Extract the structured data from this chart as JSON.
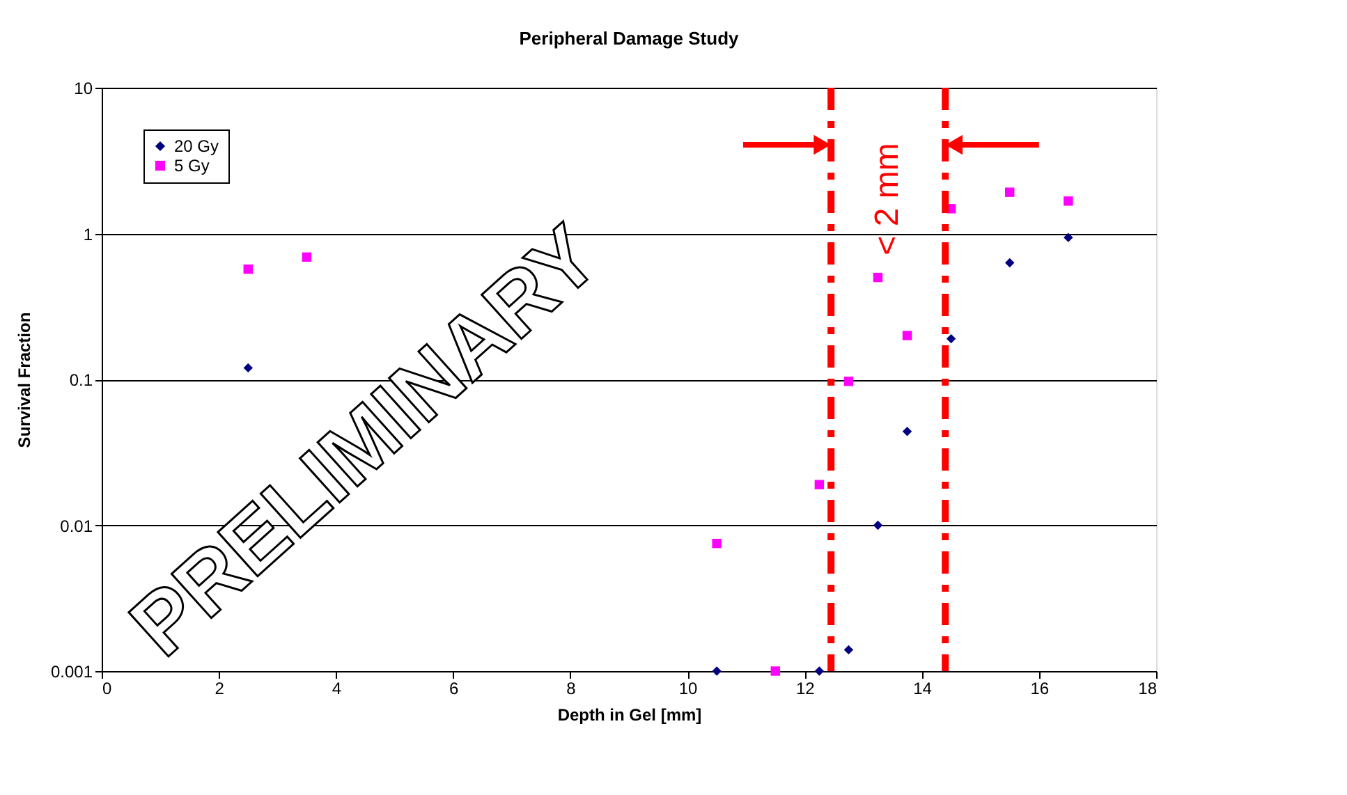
{
  "chart_data": {
    "type": "scatter",
    "title": "Peripheral Damage Study",
    "xlabel": "Depth in Gel [mm]",
    "ylabel": "Survival Fraction",
    "xlim": [
      0,
      18
    ],
    "xticks": [
      0,
      2,
      4,
      6,
      8,
      10,
      12,
      14,
      16,
      18
    ],
    "ylim": [
      0.001,
      10
    ],
    "yticks": [
      0.001,
      0.01,
      0.1,
      1,
      10
    ],
    "log": "y",
    "grid": "y",
    "legend": "top left",
    "series": [
      {
        "name": "20 Gy",
        "color": "#000080",
        "marker": "diamond",
        "x": [
          2.5,
          10.5,
          12.25,
          12.75,
          13.25,
          13.75,
          14.5,
          15.5,
          16.5
        ],
        "values": [
          0.12,
          0.001,
          0.001,
          0.0014,
          0.01,
          0.044,
          0.19,
          0.63,
          0.94
        ]
      },
      {
        "name": "5 Gy",
        "color": "#ff00ff",
        "marker": "square",
        "x": [
          2.5,
          3.5,
          10.5,
          11.5,
          12.25,
          12.75,
          13.25,
          13.75,
          14.5,
          15.5,
          16.5
        ],
        "values": [
          0.57,
          0.69,
          0.0075,
          0.001,
          0.019,
          0.097,
          0.5,
          0.2,
          1.48,
          1.92,
          1.67
        ]
      }
    ],
    "ref_lines": [
      {
        "axis": "x",
        "value": 12.45,
        "color": "#ff0000",
        "line_style": "dashed"
      },
      {
        "axis": "x",
        "value": 14.4,
        "color": "#ff0000",
        "line_style": "dashed"
      }
    ],
    "annotations": [
      "PRELIMINARY",
      "< 2 mm"
    ]
  }
}
